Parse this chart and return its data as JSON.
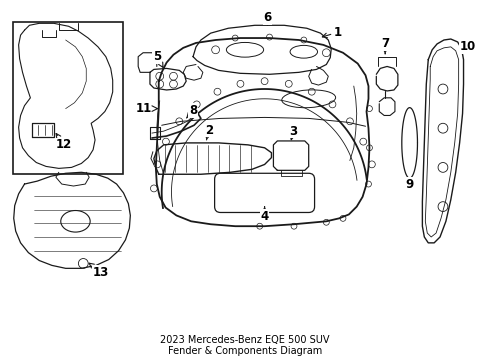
{
  "title": "2023 Mercedes-Benz EQE 500 SUV\nFender & Components Diagram",
  "background_color": "#ffffff",
  "line_color": "#1a1a1a",
  "label_color": "#000000",
  "label_fontsize": 8.5,
  "title_fontsize": 7.0,
  "fig_width": 4.9,
  "fig_height": 3.6,
  "dpi": 100
}
